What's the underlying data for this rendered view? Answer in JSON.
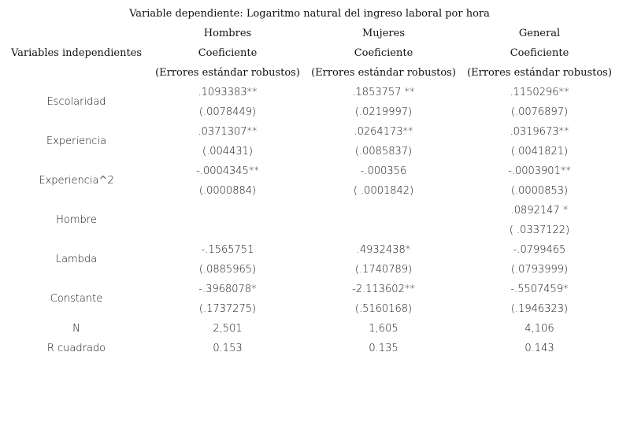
{
  "title": "Variable dependiente: Logaritmo natural del ingreso laboral por hora",
  "header": {
    "row_label": "Variables independientes",
    "columns": [
      {
        "group": "Hombres",
        "metric": "Coeficiente",
        "note": "(Errores estándar robustos)"
      },
      {
        "group": "Mujeres",
        "metric": "Coeficiente",
        "note": "(Errores estándar robustos)"
      },
      {
        "group": "General",
        "metric": "Coeficiente",
        "note": "(Errores estándar robustos)"
      }
    ]
  },
  "rows": [
    {
      "label": "Escolaridad",
      "hombres": [
        ".1093383**",
        "(.0078449)"
      ],
      "mujeres": [
        ".1853757 **",
        "(.0219997)"
      ],
      "general": [
        ".1150296**",
        "(.0076897)"
      ]
    },
    {
      "label": "Experiencia",
      "hombres": [
        ".0371307**",
        "(.004431)"
      ],
      "mujeres": [
        ".0264173**",
        "(.0085837)"
      ],
      "general": [
        ".0319673**",
        "(.0041821)"
      ]
    },
    {
      "label": "Experiencia^2",
      "hombres": [
        "-.0004345**",
        "(.0000884)"
      ],
      "mujeres": [
        "-.000356",
        "( .0001842)"
      ],
      "general": [
        "-.0003901**",
        "(.0000853)"
      ]
    },
    {
      "label": "Hombre",
      "hombres": [
        "",
        ""
      ],
      "mujeres": [
        "",
        ""
      ],
      "general": [
        ".0892147 *",
        "( .0337122)"
      ]
    },
    {
      "label": "Lambda",
      "hombres": [
        "-.1565751",
        "(.0885965)"
      ],
      "mujeres": [
        ".4932438*",
        "(.1740789)"
      ],
      "general": [
        "-.0799465",
        "(.0793999)"
      ]
    },
    {
      "label": "Constante",
      "hombres": [
        "-.3968078*",
        "(.1737275)"
      ],
      "mujeres": [
        "-2.113602**",
        "(.5160168)"
      ],
      "general": [
        "-.5507459*",
        "(.1946323)"
      ]
    }
  ],
  "stats": [
    {
      "label": "N",
      "hombres": "2,501",
      "mujeres": "1,605",
      "general": "4,106"
    },
    {
      "label": "R cuadrado",
      "hombres": "0.153",
      "mujeres": "0.135",
      "general": "0.143"
    }
  ]
}
